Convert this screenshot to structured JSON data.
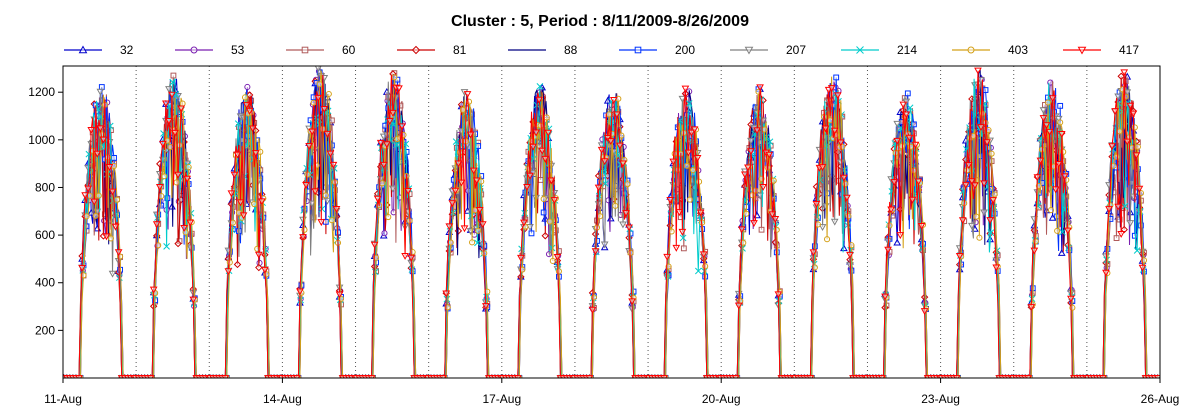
{
  "chart_data": {
    "type": "line",
    "title": "Cluster : 5, Period : 8/11/2009-8/26/2009",
    "xlabel": "",
    "ylabel": "",
    "x_range": [
      "2009-08-11",
      "2009-08-26"
    ],
    "ylim": [
      0,
      1310
    ],
    "y_ticks": [
      200,
      400,
      600,
      800,
      1000,
      1200
    ],
    "x_ticks": [
      {
        "date": "2009-08-11",
        "label": "11-Aug"
      },
      {
        "date": "2009-08-14",
        "label": "14-Aug"
      },
      {
        "date": "2009-08-17",
        "label": "17-Aug"
      },
      {
        "date": "2009-08-20",
        "label": "20-Aug"
      },
      {
        "date": "2009-08-23",
        "label": "23-Aug"
      },
      {
        "date": "2009-08-26",
        "label": "26-Aug"
      }
    ],
    "grid": "vertical dotted lines at day boundaries",
    "legend_position": "top",
    "daily_peaks": [
      {
        "date": "2009-08-11",
        "peak": 1230
      },
      {
        "date": "2009-08-12",
        "peak": 1280
      },
      {
        "date": "2009-08-13",
        "peak": 1240
      },
      {
        "date": "2009-08-14",
        "peak": 1310
      },
      {
        "date": "2009-08-15",
        "peak": 1290
      },
      {
        "date": "2009-08-16",
        "peak": 1210
      },
      {
        "date": "2009-08-17",
        "peak": 1240
      },
      {
        "date": "2009-08-18",
        "peak": 1220
      },
      {
        "date": "2009-08-19",
        "peak": 1230
      },
      {
        "date": "2009-08-20",
        "peak": 1230
      },
      {
        "date": "2009-08-21",
        "peak": 1280
      },
      {
        "date": "2009-08-22",
        "peak": 1200
      },
      {
        "date": "2009-08-23",
        "peak": 1300
      },
      {
        "date": "2009-08-24",
        "peak": 1260
      },
      {
        "date": "2009-08-25",
        "peak": 1290
      }
    ],
    "series": [
      {
        "name": "32",
        "color": "#0000cc",
        "marker": "triangle-up"
      },
      {
        "name": "53",
        "color": "#7a1fb0",
        "marker": "circle"
      },
      {
        "name": "60",
        "color": "#b05a5a",
        "marker": "square"
      },
      {
        "name": "81",
        "color": "#cc0000",
        "marker": "diamond"
      },
      {
        "name": "88",
        "color": "#000080",
        "marker": "none"
      },
      {
        "name": "200",
        "color": "#0033ff",
        "marker": "square"
      },
      {
        "name": "207",
        "color": "#808080",
        "marker": "triangle-down"
      },
      {
        "name": "214",
        "color": "#00cccc",
        "marker": "x"
      },
      {
        "name": "403",
        "color": "#d4a017",
        "marker": "circle"
      },
      {
        "name": "417",
        "color": "#ff0000",
        "marker": "triangle-down"
      }
    ]
  }
}
